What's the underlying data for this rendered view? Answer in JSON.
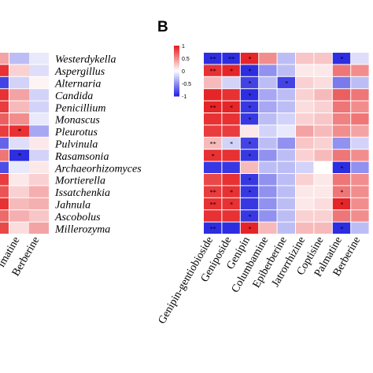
{
  "panel_label": "B",
  "colors": {
    "negative": "#2222e0",
    "neutral": "#ffffff",
    "positive": "#e41a1c"
  },
  "chart_data": [
    {
      "type": "heatmap",
      "panel": "A",
      "rows": [
        "Westerdykella",
        "Aspergillus",
        "Alternaria",
        "Candida",
        "Penicillium",
        "Monascus",
        "Pleurotus",
        "Pulvinula",
        "Rasamsonia",
        "Archaeorhizomyces",
        "Mortierella",
        "Issatchenkia",
        "Jahnula",
        "Ascobolus",
        "Millerozyma"
      ],
      "columns": [
        "",
        "Palmatine",
        "Berberine"
      ],
      "column_labels": [
        "",
        "lmatine",
        "Berberine"
      ],
      "values": [
        [
          0.4,
          -0.3,
          -0.1
        ],
        [
          0.9,
          0.2,
          -0.15
        ],
        [
          -0.85,
          -0.2,
          0.05
        ],
        [
          0.9,
          0.4,
          -0.2
        ],
        [
          0.85,
          0.3,
          -0.2
        ],
        [
          0.7,
          0.5,
          -0.1
        ],
        [
          0.85,
          0.9,
          -0.4
        ],
        [
          -0.7,
          -0.15,
          0.1
        ],
        [
          0.6,
          -0.95,
          -0.2
        ],
        [
          -0.8,
          -0.1,
          0.1
        ],
        [
          0.85,
          0.1,
          0.2
        ],
        [
          0.75,
          0.2,
          0.35
        ],
        [
          0.9,
          0.3,
          0.35
        ],
        [
          0.65,
          0.35,
          0.25
        ],
        [
          0.8,
          0.15,
          0.4
        ]
      ],
      "stars": [
        [
          6,
          1,
          "*"
        ],
        [
          8,
          1,
          "*"
        ]
      ]
    },
    {
      "type": "heatmap",
      "panel": "B",
      "rows": [
        "Westerdykella",
        "Aspergillus",
        "Alternaria",
        "Candida",
        "Penicillium",
        "Monascus",
        "Pleurotus",
        "Pulvinula",
        "Rasamsonia",
        "Archaeorhizomyces",
        "Mortierella",
        "Issatchenkia",
        "Jahnula",
        "Ascobolus",
        "Millerozyma"
      ],
      "columns": [
        "Genipin-gentiobioside",
        "Geniposide",
        "Genipin",
        "Columbamine",
        "Epiberberine",
        "Jatrorrhizine",
        "Coptisine",
        "Palmatine",
        "Berberine"
      ],
      "values": [
        [
          -0.95,
          -0.95,
          0.95,
          0.5,
          -0.3,
          0.25,
          0.25,
          -0.95,
          -0.15
        ],
        [
          0.9,
          0.95,
          -0.95,
          -0.5,
          -0.3,
          0.1,
          0.1,
          0.6,
          0.5
        ],
        [
          0.3,
          -0.2,
          -0.85,
          -0.3,
          -0.85,
          0.2,
          0.15,
          -0.6,
          -0.3
        ],
        [
          0.95,
          0.9,
          -0.95,
          -0.4,
          -0.3,
          0.2,
          0.3,
          0.7,
          0.6
        ],
        [
          0.95,
          0.95,
          -0.9,
          -0.4,
          -0.3,
          0.15,
          0.2,
          0.6,
          0.5
        ],
        [
          0.9,
          0.9,
          -0.9,
          -0.3,
          -0.2,
          0.2,
          0.25,
          0.55,
          0.6
        ],
        [
          0.85,
          0.85,
          0.1,
          -0.2,
          -0.1,
          0.4,
          0.3,
          0.5,
          0.4
        ],
        [
          0.3,
          -0.2,
          -0.85,
          -0.3,
          -0.5,
          0.25,
          0.2,
          -0.5,
          -0.2
        ],
        [
          0.9,
          0.9,
          -0.9,
          -0.5,
          -0.3,
          0.2,
          0.3,
          0.6,
          0.5
        ],
        [
          -0.9,
          -0.9,
          0.3,
          -0.3,
          -0.3,
          -0.2,
          0.0,
          -0.95,
          -0.5
        ],
        [
          0.8,
          0.9,
          -0.9,
          -0.5,
          -0.3,
          0.2,
          0.1,
          0.6,
          0.5
        ],
        [
          0.85,
          0.9,
          -0.9,
          -0.5,
          -0.3,
          0.1,
          0.1,
          0.6,
          0.5
        ],
        [
          0.9,
          0.9,
          -0.9,
          -0.5,
          -0.3,
          0.1,
          0.15,
          0.95,
          0.5
        ],
        [
          0.9,
          0.9,
          -0.9,
          -0.5,
          -0.3,
          0.2,
          0.2,
          0.6,
          0.5
        ],
        [
          -0.95,
          -0.95,
          0.95,
          0.3,
          -0.3,
          0.3,
          0.3,
          -0.95,
          -0.3
        ]
      ],
      "stars": [
        [
          0,
          0,
          "**"
        ],
        [
          0,
          1,
          "**"
        ],
        [
          0,
          2,
          "*"
        ],
        [
          0,
          7,
          "*"
        ],
        [
          1,
          0,
          "**"
        ],
        [
          1,
          1,
          "*"
        ],
        [
          1,
          2,
          "*"
        ],
        [
          2,
          2,
          "*"
        ],
        [
          2,
          4,
          "*"
        ],
        [
          3,
          2,
          "*"
        ],
        [
          4,
          0,
          "**"
        ],
        [
          4,
          1,
          "*"
        ],
        [
          4,
          2,
          "*"
        ],
        [
          5,
          2,
          "*"
        ],
        [
          7,
          0,
          "**"
        ],
        [
          7,
          1,
          "*"
        ],
        [
          7,
          2,
          "*"
        ],
        [
          8,
          0,
          "*"
        ],
        [
          8,
          2,
          "*"
        ],
        [
          9,
          7,
          "*"
        ],
        [
          10,
          2,
          "*"
        ],
        [
          11,
          0,
          "**"
        ],
        [
          11,
          1,
          "*"
        ],
        [
          11,
          2,
          "*"
        ],
        [
          11,
          7,
          "*"
        ],
        [
          12,
          0,
          "**"
        ],
        [
          12,
          1,
          "*"
        ],
        [
          12,
          7,
          "*"
        ],
        [
          13,
          2,
          "*"
        ],
        [
          14,
          0,
          "**"
        ],
        [
          14,
          2,
          "*"
        ],
        [
          14,
          7,
          "*"
        ]
      ],
      "colorbar": {
        "range": [
          -1,
          1
        ],
        "ticks": [
          1,
          0.5,
          0,
          -0.5,
          -1
        ],
        "tick_labels": [
          "1",
          "0.5",
          "0",
          "-0.5",
          "-1"
        ]
      }
    }
  ]
}
